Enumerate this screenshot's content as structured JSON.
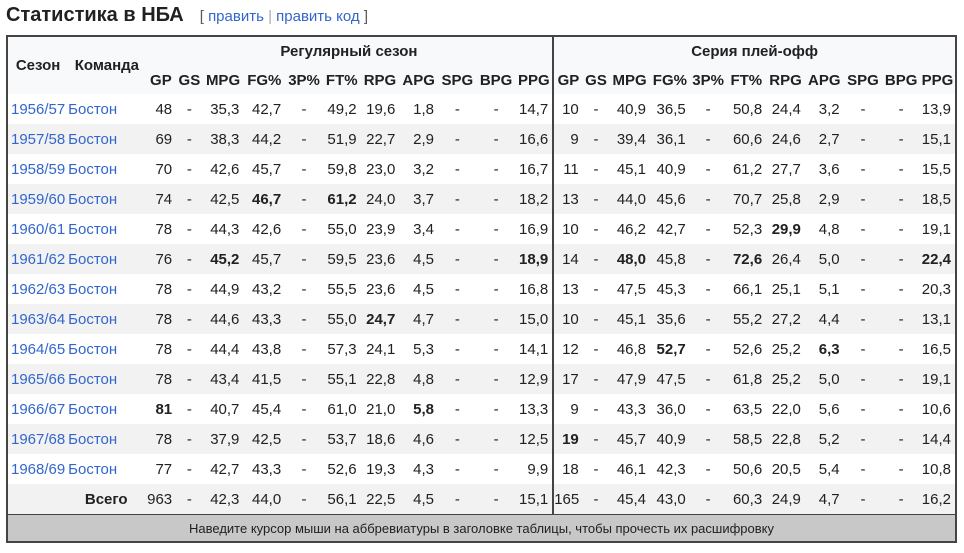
{
  "heading": {
    "title": "Статистика в НБА",
    "bracket_open": "[",
    "edit": "править",
    "separator": "|",
    "edit_code": "править код",
    "bracket_close": "]"
  },
  "table": {
    "col_season": "Сезон",
    "col_team": "Команда",
    "group_regular": "Регулярный сезон",
    "group_playoff": "Серия плей-офф",
    "stat_columns": [
      "GP",
      "GS",
      "MPG",
      "FG%",
      "3P%",
      "FT%",
      "RPG",
      "APG",
      "SPG",
      "BPG",
      "PPG"
    ],
    "rows": [
      {
        "season": "1956/57",
        "team": "Бостон",
        "reg": [
          "48",
          "-",
          "35,3",
          "42,7",
          "-",
          "49,2",
          "19,6",
          "1,8",
          "-",
          "-",
          "14,7"
        ],
        "reg_bold": [],
        "po": [
          "10",
          "-",
          "40,9",
          "36,5",
          "-",
          "50,8",
          "24,4",
          "3,2",
          "-",
          "-",
          "13,9"
        ],
        "po_bold": []
      },
      {
        "season": "1957/58",
        "team": "Бостон",
        "reg": [
          "69",
          "-",
          "38,3",
          "44,2",
          "-",
          "51,9",
          "22,7",
          "2,9",
          "-",
          "-",
          "16,6"
        ],
        "reg_bold": [],
        "po": [
          "9",
          "-",
          "39,4",
          "36,1",
          "-",
          "60,6",
          "24,6",
          "2,7",
          "-",
          "-",
          "15,1"
        ],
        "po_bold": []
      },
      {
        "season": "1958/59",
        "team": "Бостон",
        "reg": [
          "70",
          "-",
          "42,6",
          "45,7",
          "-",
          "59,8",
          "23,0",
          "3,2",
          "-",
          "-",
          "16,7"
        ],
        "reg_bold": [],
        "po": [
          "11",
          "-",
          "45,1",
          "40,9",
          "-",
          "61,2",
          "27,7",
          "3,6",
          "-",
          "-",
          "15,5"
        ],
        "po_bold": []
      },
      {
        "season": "1959/60",
        "team": "Бостон",
        "reg": [
          "74",
          "-",
          "42,5",
          "46,7",
          "-",
          "61,2",
          "24,0",
          "3,7",
          "-",
          "-",
          "18,2"
        ],
        "reg_bold": [
          3,
          5
        ],
        "po": [
          "13",
          "-",
          "44,0",
          "45,6",
          "-",
          "70,7",
          "25,8",
          "2,9",
          "-",
          "-",
          "18,5"
        ],
        "po_bold": []
      },
      {
        "season": "1960/61",
        "team": "Бостон",
        "reg": [
          "78",
          "-",
          "44,3",
          "42,6",
          "-",
          "55,0",
          "23,9",
          "3,4",
          "-",
          "-",
          "16,9"
        ],
        "reg_bold": [],
        "po": [
          "10",
          "-",
          "46,2",
          "42,7",
          "-",
          "52,3",
          "29,9",
          "4,8",
          "-",
          "-",
          "19,1"
        ],
        "po_bold": [
          6
        ]
      },
      {
        "season": "1961/62",
        "team": "Бостон",
        "reg": [
          "76",
          "-",
          "45,2",
          "45,7",
          "-",
          "59,5",
          "23,6",
          "4,5",
          "-",
          "-",
          "18,9"
        ],
        "reg_bold": [
          2,
          10
        ],
        "po": [
          "14",
          "-",
          "48,0",
          "45,8",
          "-",
          "72,6",
          "26,4",
          "5,0",
          "-",
          "-",
          "22,4"
        ],
        "po_bold": [
          2,
          5,
          10
        ]
      },
      {
        "season": "1962/63",
        "team": "Бостон",
        "reg": [
          "78",
          "-",
          "44,9",
          "43,2",
          "-",
          "55,5",
          "23,6",
          "4,5",
          "-",
          "-",
          "16,8"
        ],
        "reg_bold": [],
        "po": [
          "13",
          "-",
          "47,5",
          "45,3",
          "-",
          "66,1",
          "25,1",
          "5,1",
          "-",
          "-",
          "20,3"
        ],
        "po_bold": []
      },
      {
        "season": "1963/64",
        "team": "Бостон",
        "reg": [
          "78",
          "-",
          "44,6",
          "43,3",
          "-",
          "55,0",
          "24,7",
          "4,7",
          "-",
          "-",
          "15,0"
        ],
        "reg_bold": [
          6
        ],
        "po": [
          "10",
          "-",
          "45,1",
          "35,6",
          "-",
          "55,2",
          "27,2",
          "4,4",
          "-",
          "-",
          "13,1"
        ],
        "po_bold": []
      },
      {
        "season": "1964/65",
        "team": "Бостон",
        "reg": [
          "78",
          "-",
          "44,4",
          "43,8",
          "-",
          "57,3",
          "24,1",
          "5,3",
          "-",
          "-",
          "14,1"
        ],
        "reg_bold": [],
        "po": [
          "12",
          "-",
          "46,8",
          "52,7",
          "-",
          "52,6",
          "25,2",
          "6,3",
          "-",
          "-",
          "16,5"
        ],
        "po_bold": [
          3,
          7
        ]
      },
      {
        "season": "1965/66",
        "team": "Бостон",
        "reg": [
          "78",
          "-",
          "43,4",
          "41,5",
          "-",
          "55,1",
          "22,8",
          "4,8",
          "-",
          "-",
          "12,9"
        ],
        "reg_bold": [],
        "po": [
          "17",
          "-",
          "47,9",
          "47,5",
          "-",
          "61,8",
          "25,2",
          "5,0",
          "-",
          "-",
          "19,1"
        ],
        "po_bold": []
      },
      {
        "season": "1966/67",
        "team": "Бостон",
        "reg": [
          "81",
          "-",
          "40,7",
          "45,4",
          "-",
          "61,0",
          "21,0",
          "5,8",
          "-",
          "-",
          "13,3"
        ],
        "reg_bold": [
          0,
          7
        ],
        "po": [
          "9",
          "-",
          "43,3",
          "36,0",
          "-",
          "63,5",
          "22,0",
          "5,6",
          "-",
          "-",
          "10,6"
        ],
        "po_bold": []
      },
      {
        "season": "1967/68",
        "team": "Бостон",
        "reg": [
          "78",
          "-",
          "37,9",
          "42,5",
          "-",
          "53,7",
          "18,6",
          "4,6",
          "-",
          "-",
          "12,5"
        ],
        "reg_bold": [],
        "po": [
          "19",
          "-",
          "45,7",
          "40,9",
          "-",
          "58,5",
          "22,8",
          "5,2",
          "-",
          "-",
          "14,4"
        ],
        "po_bold": [
          0
        ]
      },
      {
        "season": "1968/69",
        "team": "Бостон",
        "reg": [
          "77",
          "-",
          "42,7",
          "43,3",
          "-",
          "52,6",
          "19,3",
          "4,3",
          "-",
          "-",
          "9,9"
        ],
        "reg_bold": [],
        "po": [
          "18",
          "-",
          "46,1",
          "42,3",
          "-",
          "50,6",
          "20,5",
          "5,4",
          "-",
          "-",
          "10,8"
        ],
        "po_bold": []
      }
    ],
    "total": {
      "label": "Всего",
      "reg": [
        "963",
        "-",
        "42,3",
        "44,0",
        "-",
        "56,1",
        "22,5",
        "4,5",
        "-",
        "-",
        "15,1"
      ],
      "po": [
        "165",
        "-",
        "45,4",
        "43,0",
        "-",
        "60,3",
        "24,9",
        "4,7",
        "-",
        "-",
        "16,2"
      ]
    },
    "footer_note": "Наведите курсор мыши на аббревиатуры в заголовке таблицы, чтобы прочесть их расшифровку"
  }
}
